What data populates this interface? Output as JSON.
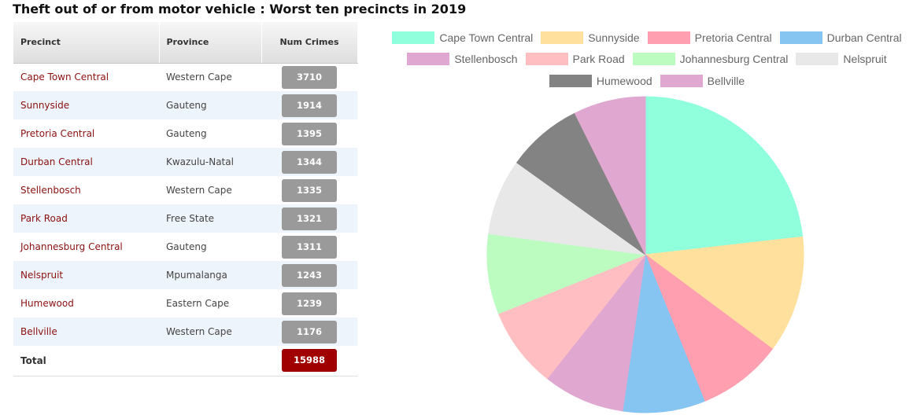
{
  "title": "Theft out of or from motor vehicle : Worst ten precincts in 2019",
  "table": {
    "headers": {
      "precinct": "Precinct",
      "province": "Province",
      "num": "Num Crimes"
    },
    "rows": [
      {
        "precinct": "Cape Town Central",
        "province": "Western Cape",
        "num": "3710"
      },
      {
        "precinct": "Sunnyside",
        "province": "Gauteng",
        "num": "1914"
      },
      {
        "precinct": "Pretoria Central",
        "province": "Gauteng",
        "num": "1395"
      },
      {
        "precinct": "Durban Central",
        "province": "Kwazulu-Natal",
        "num": "1344"
      },
      {
        "precinct": "Stellenbosch",
        "province": "Western Cape",
        "num": "1335"
      },
      {
        "precinct": "Park Road",
        "province": "Free State",
        "num": "1321"
      },
      {
        "precinct": "Johannesburg Central",
        "province": "Gauteng",
        "num": "1311"
      },
      {
        "precinct": "Nelspruit",
        "province": "Mpumalanga",
        "num": "1243"
      },
      {
        "precinct": "Humewood",
        "province": "Eastern Cape",
        "num": "1239"
      },
      {
        "precinct": "Bellville",
        "province": "Western Cape",
        "num": "1176"
      }
    ],
    "total": {
      "label": "Total",
      "num": "15988"
    }
  },
  "chart_data": {
    "type": "pie",
    "title": "",
    "legend_position": "top",
    "categories": [
      "Cape Town Central",
      "Sunnyside",
      "Pretoria Central",
      "Durban Central",
      "Stellenbosch",
      "Park Road",
      "Johannesburg Central",
      "Nelspruit",
      "Humewood",
      "Bellville"
    ],
    "values": [
      3710,
      1914,
      1395,
      1344,
      1335,
      1321,
      1311,
      1243,
      1239,
      1176
    ],
    "colors": [
      "#8fffdc",
      "#ffe09c",
      "#ff9fb0",
      "#86c5f2",
      "#e0a8d0",
      "#ffbfc2",
      "#bdfcc1",
      "#e8e8e8",
      "#838383",
      "#e0a8d0"
    ]
  }
}
